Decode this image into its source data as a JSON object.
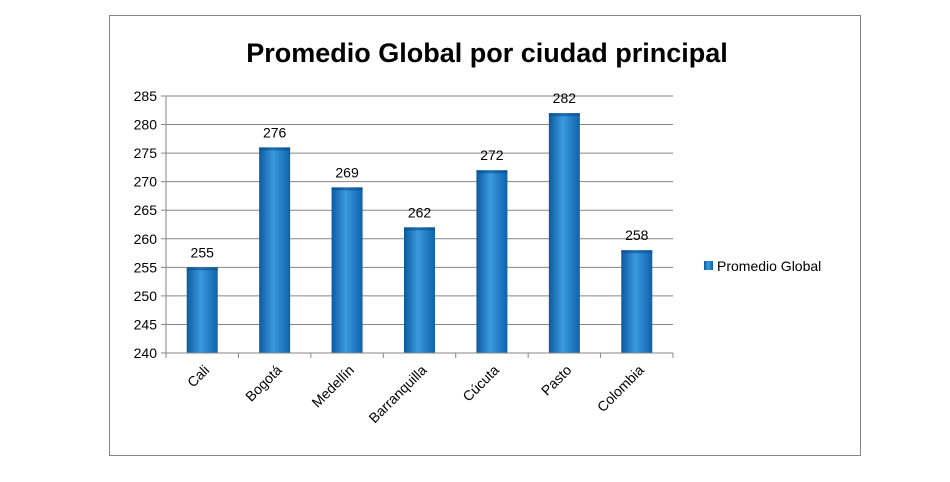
{
  "chart_data": {
    "type": "bar",
    "title": "Promedio Global por ciudad principal",
    "xlabel": "",
    "ylabel": "",
    "categories": [
      "Cali",
      "Bogotá",
      "Medellín",
      "Barranquilla",
      "Cúcuta",
      "Pasto",
      "Colombia"
    ],
    "series": [
      {
        "name": "Promedio Global",
        "values": [
          255,
          276,
          269,
          262,
          272,
          282,
          258
        ]
      }
    ],
    "ylim": [
      240,
      285
    ],
    "yticks": [
      240,
      245,
      250,
      255,
      260,
      265,
      270,
      275,
      280,
      285
    ],
    "grid": true,
    "legend_position": "right",
    "data_labels": true,
    "colors": {
      "bar": "#1f7fcf",
      "bar_light": "#4aa6e6",
      "bar_dark": "#0d5a9e",
      "grid": "#868686",
      "axis": "#868686"
    }
  }
}
